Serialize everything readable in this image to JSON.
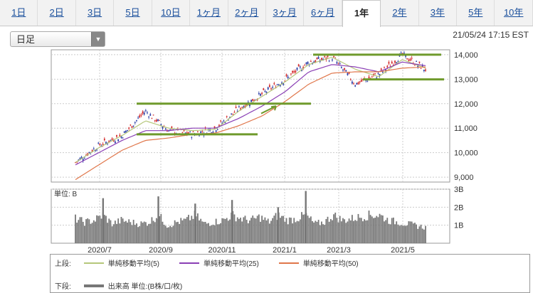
{
  "tabs": [
    "1日",
    "2日",
    "3日",
    "5日",
    "10日",
    "1ヶ月",
    "2ヶ月",
    "3ヶ月",
    "6ヶ月",
    "1年",
    "2年",
    "3年",
    "5年",
    "10年"
  ],
  "active_tab": 9,
  "period_select": {
    "value": "日足"
  },
  "timestamp": "21/05/24 17:15 EST",
  "legend": {
    "upper_label": "上段:",
    "lower_label": "下段:",
    "ma5": "単純移動平均(5)",
    "ma25": "単純移動平均(25)",
    "ma50": "単純移動平均(50)",
    "volume": "出来高 単位:(B株/口/枚)"
  },
  "colors": {
    "ma5": "#b5c77a",
    "ma25": "#8a3fb5",
    "ma50": "#e0764a",
    "up": "#2b3ea8",
    "down": "#d42b2b",
    "annotation": "#6f9a2c",
    "volume": "#777777"
  },
  "chart_data": [
    {
      "type": "candlestick",
      "x_ticks": [
        "2020/7",
        "2020/9",
        "2020/11",
        "2021/1",
        "2021/3",
        "2021/5"
      ],
      "yticks": [
        "14,000",
        "13,000",
        "12,000",
        "11,000",
        "10,000",
        "9,000"
      ],
      "ylim": [
        8800,
        14200
      ],
      "grid": true,
      "series": [
        {
          "name": "単純移動平均(5)",
          "values": [
            9600,
            10200,
            10700,
            11300,
            11000,
            10900,
            10950,
            11700,
            12300,
            12900,
            13600,
            13900,
            13400,
            13100,
            13800,
            13450
          ]
        },
        {
          "name": "単純移動平均(25)",
          "values": [
            9500,
            10000,
            10500,
            10900,
            10900,
            11000,
            11000,
            11400,
            11900,
            12500,
            13300,
            13600,
            13500,
            13300,
            13700,
            13550
          ]
        },
        {
          "name": "単純移動平均(50)",
          "values": [
            8900,
            9500,
            10100,
            10500,
            10600,
            10750,
            10800,
            11100,
            11500,
            12100,
            12800,
            13250,
            13300,
            13300,
            13450,
            13500
          ]
        }
      ],
      "close": [
        9600,
        10300,
        10700,
        11700,
        10900,
        10750,
        11000,
        11800,
        12400,
        13000,
        13700,
        13900,
        12800,
        13200,
        14000,
        13400
      ]
    },
    {
      "type": "bar",
      "title": "単位: B",
      "yticks": [
        "3B",
        "2B",
        "1B"
      ],
      "ylim": [
        0,
        3
      ],
      "values": [
        1.4,
        1.2,
        1.3,
        2.5,
        1.1,
        1.3,
        1.2,
        1.1,
        1.2,
        2.6,
        1.0,
        1.2,
        1.3,
        2.2,
        1.1,
        1.2,
        1.3,
        2.4,
        1.4,
        1.3,
        1.5,
        1.2,
        2.0,
        1.3,
        1.4,
        2.9,
        1.1,
        1.2,
        1.6,
        1.3,
        1.4,
        1.5,
        1.8,
        1.6,
        1.3,
        1.2,
        1.1,
        1.0,
        0.9
      ]
    }
  ]
}
